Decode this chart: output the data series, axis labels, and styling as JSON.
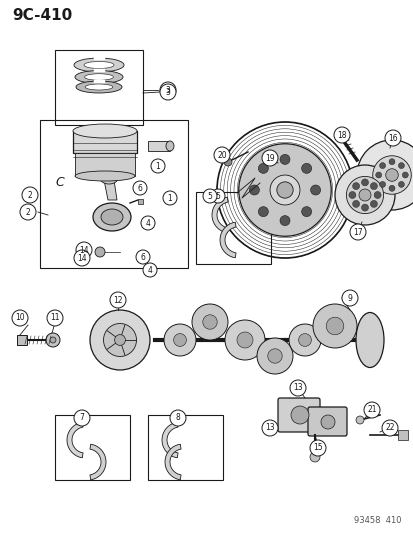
{
  "title": "9C-410",
  "footer": "93458  410",
  "bg_color": "#ffffff",
  "line_color": "#1a1a1a",
  "title_fontsize": 11,
  "footer_fontsize": 6,
  "fig_width": 4.14,
  "fig_height": 5.33,
  "dpi": 100
}
